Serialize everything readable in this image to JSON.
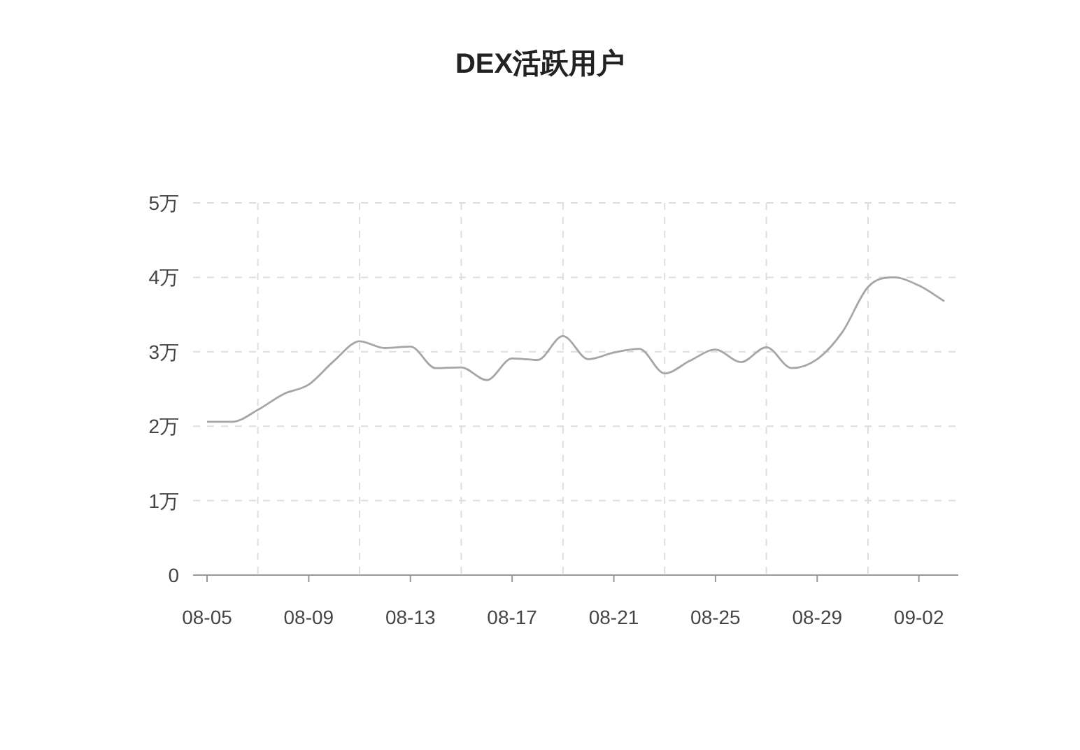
{
  "chart_data": {
    "type": "line",
    "title": "DEX活跃用户",
    "categories": [
      "08-05",
      null,
      null,
      null,
      "08-09",
      null,
      null,
      null,
      "08-13",
      null,
      null,
      null,
      "08-17",
      null,
      null,
      null,
      "08-21",
      null,
      null,
      null,
      "08-25",
      null,
      null,
      null,
      "08-29",
      null,
      null,
      null,
      "09-02",
      null
    ],
    "series": [
      {
        "color": "#a6a6a6",
        "values": [
          2.06,
          2.06,
          2.22,
          2.43,
          2.56,
          2.88,
          3.14,
          3.05,
          3.07,
          2.78,
          2.79,
          2.62,
          2.91,
          2.89,
          3.21,
          2.9,
          2.99,
          3.04,
          2.71,
          2.88,
          3.03,
          2.86,
          3.06,
          2.78,
          2.9,
          3.27,
          3.87,
          4.0,
          3.89,
          3.68
        ]
      }
    ],
    "ylim": [
      0,
      5
    ],
    "yticks": [
      0,
      {
        "value": 1,
        "label": "1万"
      },
      {
        "value": 2,
        "label": "2万"
      },
      {
        "value": 3,
        "label": "3万"
      },
      {
        "value": 4,
        "label": "4万"
      },
      {
        "value": 5,
        "label": "5万"
      }
    ],
    "grid": true,
    "marker": "none",
    "line_style": "solid"
  }
}
